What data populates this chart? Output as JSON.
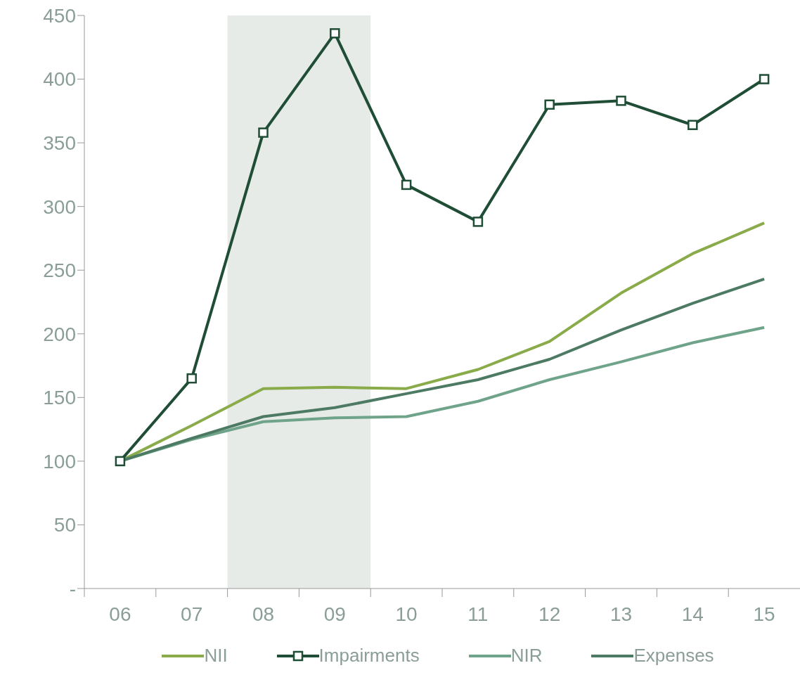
{
  "chart_data": {
    "type": "line",
    "categories": [
      "06",
      "07",
      "08",
      "09",
      "10",
      "11",
      "12",
      "13",
      "14",
      "15"
    ],
    "series": [
      {
        "name": "NII",
        "color": "#8aab4a",
        "marker": "none",
        "values": [
          100,
          128,
          157,
          158,
          157,
          172,
          194,
          232,
          263,
          287
        ]
      },
      {
        "name": "Impairments",
        "color": "#1f4d36",
        "marker": "square",
        "values": [
          100,
          165,
          358,
          436,
          317,
          288,
          380,
          383,
          364,
          400
        ]
      },
      {
        "name": "NIR",
        "color": "#6fa48a",
        "marker": "none",
        "values": [
          100,
          117,
          131,
          134,
          135,
          147,
          164,
          178,
          193,
          205
        ]
      },
      {
        "name": "Expenses",
        "color": "#4d7a63",
        "marker": "none",
        "values": [
          100,
          118,
          135,
          142,
          153,
          164,
          180,
          203,
          224,
          243
        ]
      }
    ],
    "ylim": [
      0,
      450
    ],
    "yticks": [
      {
        "value": 0,
        "label": "-"
      },
      50,
      100,
      150,
      200,
      250,
      300,
      350,
      400,
      450
    ],
    "bands": [
      {
        "axis": "x",
        "from": "08",
        "to": "09",
        "color": "#e6ebe8"
      }
    ],
    "grid": false,
    "legend": "bottom",
    "line_style": "solid"
  }
}
